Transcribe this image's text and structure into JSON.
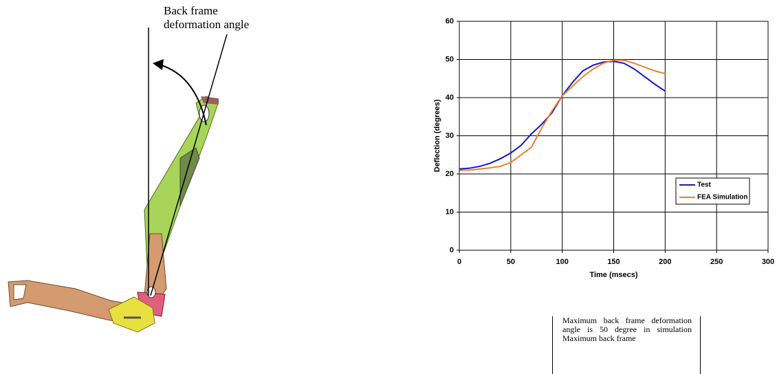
{
  "figure": {
    "angle_label": "Back frame deformation angle",
    "note": "Maximum back frame deformation angle is 50 degree in simulation Maximum back frame"
  },
  "chart_data": {
    "type": "line",
    "x_label": "Time (msecs)",
    "y_label": "Deflection (degrees)",
    "x": [
      0,
      10,
      20,
      30,
      40,
      50,
      60,
      70,
      80,
      90,
      100,
      110,
      120,
      130,
      140,
      150,
      160,
      170,
      180,
      190,
      200
    ],
    "series": [
      {
        "name": "Test",
        "color": "#1515c8",
        "values": [
          21.3,
          21.5,
          22,
          22.8,
          24,
          25.5,
          27.5,
          30.5,
          33,
          36,
          40.5,
          44,
          47,
          48.5,
          49.3,
          49.5,
          49,
          47.5,
          45.5,
          43.5,
          41.7
        ]
      },
      {
        "name": "FEA Simulation",
        "color": "#f07f2a",
        "values": [
          21,
          21,
          21.3,
          21.6,
          22,
          23,
          25,
          27,
          32,
          36.5,
          40.5,
          43,
          45.5,
          47.5,
          49,
          49.8,
          49.8,
          49,
          48,
          47,
          46.3
        ]
      }
    ],
    "xlim": [
      0,
      300
    ],
    "xticks": [
      0,
      50,
      100,
      150,
      200,
      250,
      300
    ],
    "ylim": [
      0,
      60
    ],
    "yticks": [
      0,
      10,
      20,
      30,
      40,
      50,
      60
    ],
    "grid": true,
    "legend": "right"
  }
}
